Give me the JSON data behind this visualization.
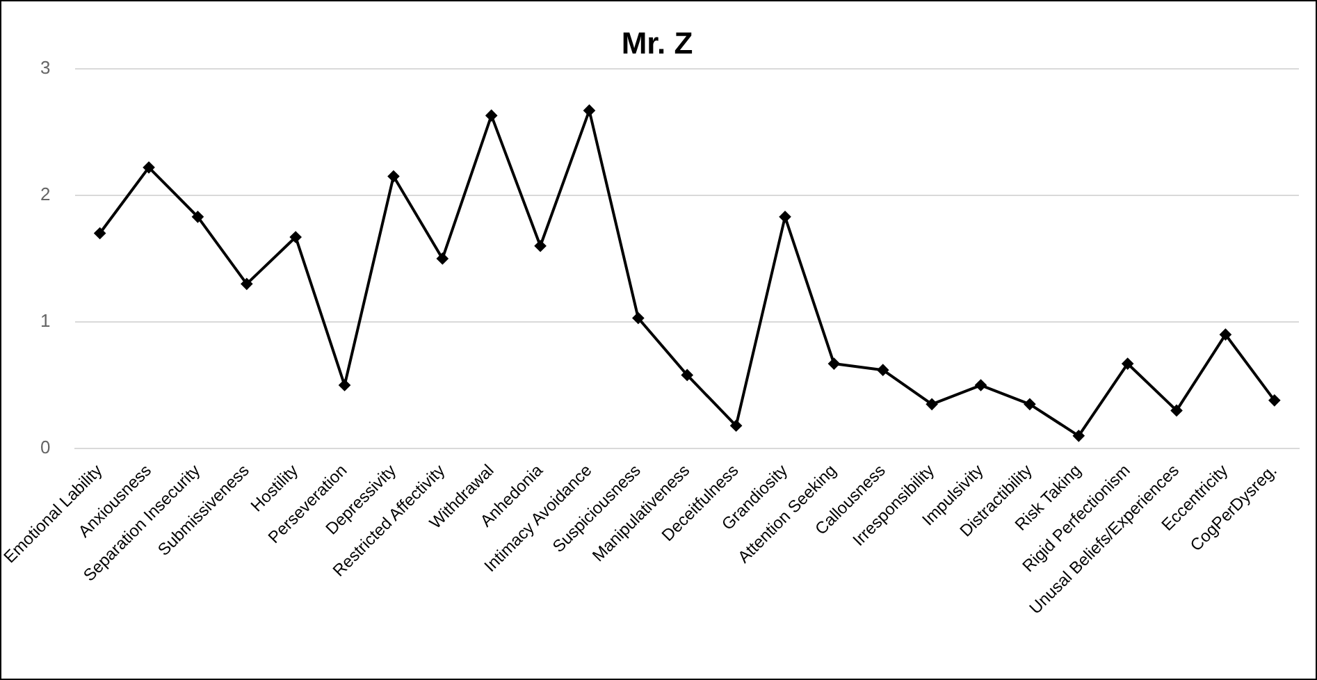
{
  "chart_data": {
    "type": "line",
    "title": "Mr. Z",
    "categories": [
      "Emotional Lability",
      "Anxiousness",
      "Separation Insecurity",
      "Submissiveness",
      "Hostility",
      "Perseveration",
      "Depressivity",
      "Restricted Affectivity",
      "Withdrawal",
      "Anhedonia",
      "Intimacy Avoidance",
      "Suspiciousness",
      "Manipulativeness",
      "Deceitfulness",
      "Grandiosity",
      "Attention Seeking",
      "Callousness",
      "Irresponsibility",
      "Impulsivity",
      "Distractibility",
      "Risk Taking",
      "Rigid Perfectionism",
      "Unusal Beliefs/Experiences",
      "Eccentricity",
      "CogPerDysreg."
    ],
    "values": [
      1.7,
      2.22,
      1.83,
      1.3,
      1.67,
      0.5,
      2.15,
      1.5,
      2.63,
      1.6,
      2.67,
      1.03,
      0.58,
      0.18,
      1.83,
      0.67,
      0.62,
      0.35,
      0.5,
      0.35,
      0.1,
      0.67,
      0.3,
      0.9,
      0.38
    ],
    "color": "#000000",
    "ylim": [
      0,
      3
    ],
    "yticks": [
      0,
      1,
      2,
      3
    ],
    "grid": "y",
    "legend": false,
    "marker": "diamond",
    "line_style": "solid"
  }
}
